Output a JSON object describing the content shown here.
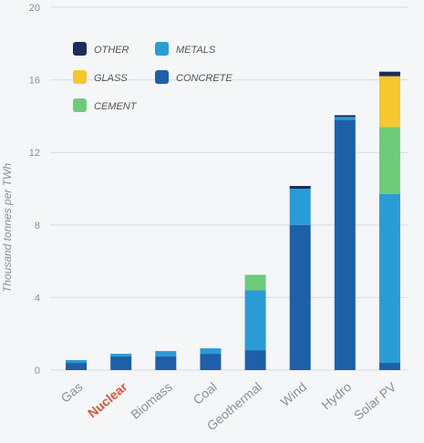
{
  "chart_data": {
    "type": "bar",
    "stacked": true,
    "categories": [
      "Gas",
      "Nuclear",
      "Biomass",
      "Coal",
      "Geothermal",
      "Wind",
      "Hydro",
      "Solar PV"
    ],
    "highlighted_category": "Nuclear",
    "ylabel": "Thousand tonnes per TWh",
    "xlabel": "",
    "title": "",
    "ylim": [
      0,
      20
    ],
    "yticks": [
      0,
      4,
      8,
      12,
      16,
      20
    ],
    "grid": true,
    "legend_position": "top-left",
    "series": [
      {
        "name": "CONCRETE",
        "color": "#1f5fa8",
        "values": [
          0.4,
          0.75,
          0.75,
          0.9,
          1.1,
          8.0,
          13.8,
          0.4
        ]
      },
      {
        "name": "METALS",
        "color": "#2b9bd6",
        "values": [
          0.15,
          0.15,
          0.3,
          0.3,
          3.3,
          2.0,
          0.15,
          9.3
        ]
      },
      {
        "name": "CEMENT",
        "color": "#6ecb7a",
        "values": [
          0,
          0,
          0,
          0,
          0.85,
          0,
          0,
          3.7
        ]
      },
      {
        "name": "GLASS",
        "color": "#f6c72e",
        "values": [
          0,
          0,
          0,
          0,
          0,
          0,
          0,
          2.8
        ]
      },
      {
        "name": "OTHER",
        "color": "#1c2b5a",
        "values": [
          0,
          0,
          0,
          0,
          0,
          0.15,
          0.1,
          0.25
        ]
      }
    ],
    "legend_order": [
      "OTHER",
      "METALS",
      "GLASS",
      "CONCRETE",
      "CEMENT"
    ]
  },
  "colors": {
    "background": "#f5f6f8",
    "grid": "#d8dce3",
    "highlight_label": "#d4573a",
    "tick_text": "#8a8f98"
  }
}
